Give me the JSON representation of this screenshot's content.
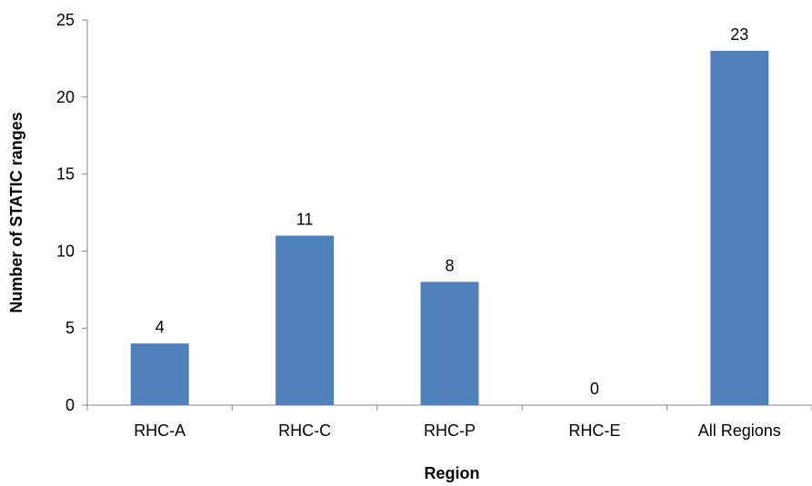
{
  "chart_data": {
    "type": "bar",
    "title": "",
    "xlabel": "Region",
    "ylabel": "Number of STATIC ranges",
    "categories": [
      "RHC-A",
      "RHC-C",
      "RHC-P",
      "RHC-E",
      "All Regions"
    ],
    "values": [
      4,
      11,
      8,
      0,
      23
    ],
    "ylim": [
      0,
      25
    ],
    "yticks": [
      "0",
      "5",
      "10",
      "15",
      "20",
      "25"
    ],
    "data_labels": [
      "4",
      "11",
      "8",
      "0",
      "23"
    ],
    "grid": false,
    "legend": "none",
    "bar_color": "#4f81bd"
  }
}
